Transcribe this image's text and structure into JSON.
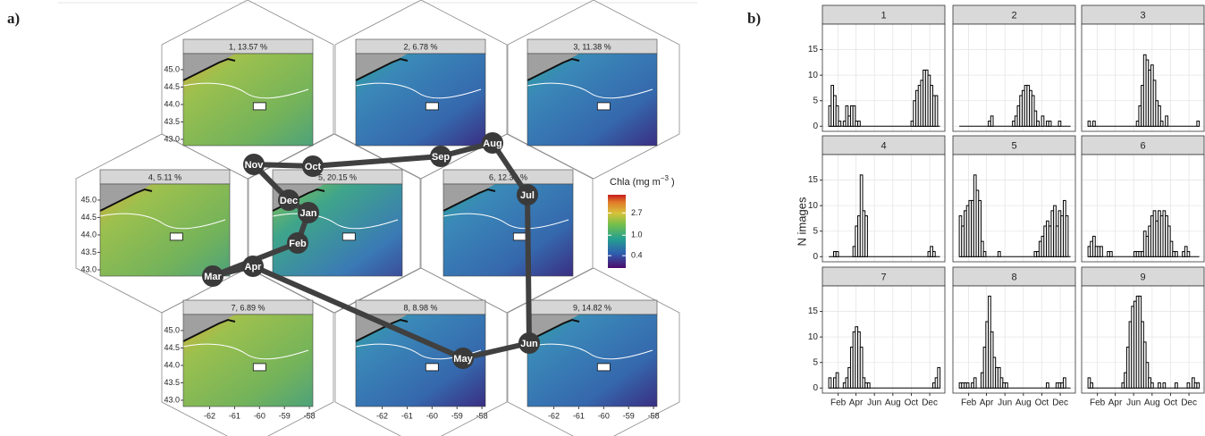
{
  "panel_a": {
    "label": "a)",
    "maps": [
      {
        "title": "1, 13.57 %"
      },
      {
        "title": "2, 6.78 %"
      },
      {
        "title": "3, 11.38 %"
      },
      {
        "title": "4, 5.11 %"
      },
      {
        "title": "5, 20.15 %"
      },
      {
        "title": "6, 12.32 %"
      },
      {
        "title": "7, 6.89 %"
      },
      {
        "title": "8, 8.98 %"
      },
      {
        "title": "9, 14.82 %"
      }
    ],
    "lat_lim": [
      42.82,
      45.46
    ],
    "lat_ticks": [
      {
        "value": 43.0,
        "label": "43.0"
      },
      43.5,
      {
        "value": 44.0,
        "label": "44.0"
      },
      44.5,
      {
        "value": 45.0,
        "label": "45.0"
      }
    ],
    "lon_lim": [
      -63.06,
      -57.86
    ],
    "lon_ticks": [
      -62,
      -61,
      -60,
      -59,
      -58
    ],
    "colorbar": {
      "title": "Chla (mg m",
      "title_sup": "−3",
      "title_end": " )",
      "log": true,
      "lim": [
        0.23,
        6.1
      ],
      "ticks": [
        0.4,
        {
          "value": 1.0,
          "label": "1.0"
        },
        2.7
      ]
    },
    "months": [
      "Jan",
      "Feb",
      "Mar",
      "Apr",
      "May",
      "Jun",
      "Jul",
      "Aug",
      "Sep",
      "Oct",
      "Nov",
      "Dec"
    ]
  },
  "panel_b": {
    "label": "b)",
    "y_label": "N images",
    "type": "histogram",
    "grid": true,
    "ylim": [
      -1,
      20
    ],
    "yticks": [
      0,
      5,
      10,
      15
    ],
    "xlim": [
      -20,
      385
    ],
    "xticks": [
      {
        "value": 32,
        "label": "Feb"
      },
      {
        "value": 91,
        "label": "Apr"
      },
      {
        "value": 152,
        "label": "Jun"
      },
      {
        "value": 213,
        "label": "Aug"
      },
      {
        "value": 274,
        "label": "Oct"
      },
      {
        "value": 335,
        "label": "Dec"
      }
    ],
    "bins": [
      1,
      9,
      17,
      25,
      33,
      41,
      49,
      57,
      65,
      73,
      81,
      89,
      97,
      105,
      113,
      121,
      129,
      137,
      145,
      153,
      161,
      169,
      177,
      185,
      193,
      201,
      209,
      217,
      225,
      233,
      241,
      249,
      257,
      265,
      273,
      281,
      289,
      297,
      305,
      313,
      321,
      329,
      337,
      345,
      353,
      361,
      369
    ],
    "facets": [
      {
        "title": "1",
        "values": [
          4,
          8,
          6,
          4,
          1,
          0,
          1,
          4,
          2,
          4,
          4,
          1,
          1,
          0,
          0,
          0,
          0,
          0,
          0,
          0,
          0,
          0,
          0,
          0,
          0,
          0,
          0,
          0,
          0,
          0,
          0,
          0,
          0,
          0,
          1,
          5,
          7,
          8,
          9,
          11,
          11,
          10,
          8,
          6,
          6,
          0
        ]
      },
      {
        "title": "2",
        "values": [
          0,
          0,
          0,
          0,
          0,
          0,
          0,
          0,
          0,
          0,
          0,
          0,
          1,
          2,
          0,
          0,
          0,
          0,
          0,
          0,
          0,
          0,
          1,
          2,
          4,
          6,
          7,
          8,
          8,
          7,
          6,
          3,
          1,
          0,
          2,
          0,
          1,
          1,
          0,
          0,
          0,
          1,
          0,
          0,
          0,
          0
        ]
      },
      {
        "title": "3",
        "values": [
          1,
          0,
          1,
          0,
          0,
          0,
          0,
          0,
          0,
          0,
          0,
          0,
          0,
          0,
          0,
          0,
          0,
          0,
          0,
          0,
          1,
          4,
          8,
          14,
          13,
          11,
          12,
          9,
          5,
          4,
          1,
          0,
          2,
          0,
          0,
          0,
          0,
          0,
          0,
          0,
          0,
          0,
          0,
          0,
          0,
          1
        ]
      },
      {
        "title": "4",
        "values": [
          0,
          0,
          1,
          1,
          0,
          0,
          0,
          0,
          0,
          0,
          2,
          6,
          8,
          16,
          9,
          8,
          0,
          0,
          0,
          0,
          0,
          0,
          0,
          0,
          0,
          0,
          0,
          0,
          0,
          0,
          0,
          0,
          0,
          0,
          0,
          0,
          0,
          0,
          0,
          0,
          0,
          1,
          2,
          1,
          0,
          0
        ]
      },
      {
        "title": "5",
        "values": [
          8,
          6,
          9,
          10,
          11,
          11,
          16,
          13,
          11,
          3,
          1,
          0,
          0,
          0,
          0,
          0,
          1,
          0,
          0,
          0,
          0,
          0,
          0,
          0,
          0,
          0,
          0,
          0,
          0,
          0,
          0,
          1,
          1,
          3,
          4,
          6,
          7,
          6,
          9,
          10,
          6,
          9,
          8,
          11,
          8,
          0
        ]
      },
      {
        "title": "6",
        "values": [
          2,
          3,
          4,
          2,
          2,
          2,
          0,
          0,
          1,
          1,
          0,
          0,
          0,
          0,
          0,
          0,
          0,
          0,
          0,
          1,
          1,
          1,
          1,
          5,
          4,
          6,
          8,
          9,
          7,
          9,
          8,
          9,
          8,
          6,
          3,
          1,
          1,
          0,
          0,
          1,
          2,
          1,
          0,
          0,
          0,
          0
        ]
      },
      {
        "title": "7",
        "values": [
          2,
          0,
          2,
          3,
          0,
          0,
          1,
          2,
          4,
          8,
          11,
          12,
          11,
          8,
          2,
          1,
          1,
          0,
          0,
          0,
          0,
          0,
          0,
          0,
          0,
          0,
          0,
          0,
          0,
          0,
          0,
          0,
          0,
          0,
          0,
          0,
          0,
          0,
          0,
          0,
          0,
          0,
          0,
          1,
          2,
          4
        ]
      },
      {
        "title": "8",
        "values": [
          1,
          1,
          1,
          1,
          0,
          1,
          2,
          0,
          0,
          3,
          8,
          13,
          18,
          11,
          6,
          4,
          4,
          2,
          1,
          1,
          0,
          0,
          0,
          0,
          0,
          0,
          0,
          0,
          0,
          0,
          0,
          0,
          0,
          0,
          0,
          0,
          1,
          0,
          0,
          0,
          1,
          1,
          1,
          2,
          0,
          0
        ]
      },
      {
        "title": "9",
        "values": [
          2,
          1,
          0,
          0,
          0,
          0,
          0,
          0,
          0,
          0,
          0,
          0,
          0,
          0,
          1,
          3,
          8,
          13,
          16,
          17,
          18,
          18,
          13,
          9,
          5,
          2,
          1,
          0,
          0,
          1,
          0,
          1,
          0,
          0,
          0,
          0,
          1,
          0,
          0,
          0,
          0,
          1,
          0,
          2,
          1,
          1
        ]
      }
    ]
  }
}
